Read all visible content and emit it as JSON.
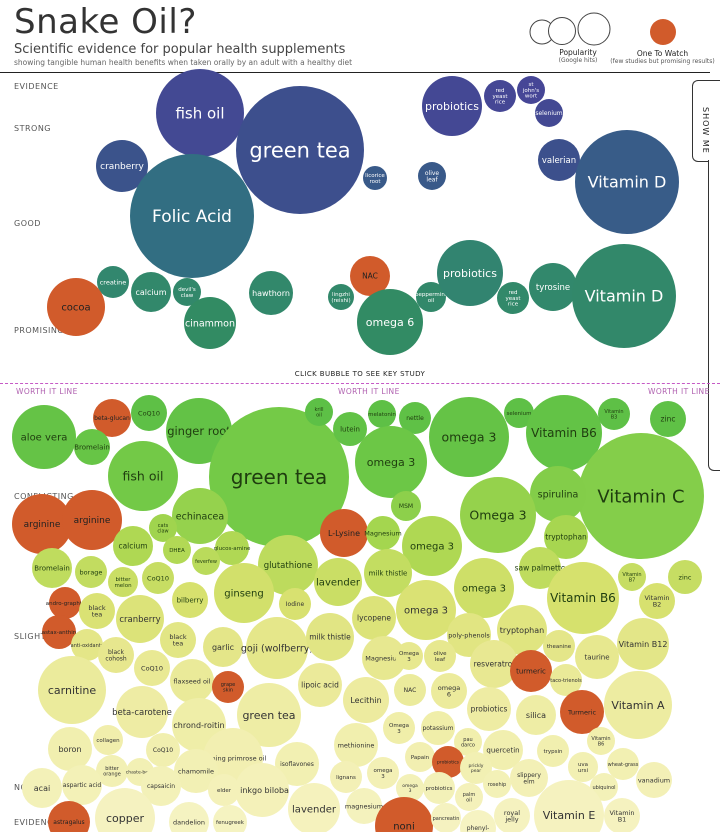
{
  "header": {
    "title": "Snake Oil?",
    "subtitle": "Scientific evidence for popular health supplements",
    "subtitle2": "showing tangible human health benefits when taken orally by an adult with a healthy diet"
  },
  "legend": {
    "popularity_label": "Popularity",
    "popularity_sub": "(Google hits)",
    "one_to_watch_label": "One To Watch",
    "one_to_watch_sub": "(few studies but promising results)",
    "one_to_watch_color": "#d15b2b"
  },
  "show_me_label": "SHOW ME",
  "evidence_levels": {
    "evidence": "EVIDENCE",
    "strong": "STRONG",
    "good": "GOOD",
    "promising": "PROMISING",
    "conflicting": "CONFLICTING",
    "slight": "SLIGHT",
    "none": "NONE",
    "evidence_bottom": "EVIDENCE"
  },
  "click_note": "CLICK BUBBLE TO SEE KEY STUDY",
  "worth_it_line": "WORTH IT LINE",
  "chart_data": {
    "type": "bubble",
    "title": "Snake Oil?",
    "y_axis_categories": [
      "STRONG",
      "GOOD",
      "PROMISING",
      "CONFLICTING",
      "SLIGHT",
      "NONE"
    ],
    "size_meaning": "Popularity (Google hits)",
    "highlight_meaning": "One To Watch (few studies but promising results)",
    "bubbles": [
      {
        "name": "fish oil",
        "level": "strong",
        "popularity": 2.3,
        "watch": false
      },
      {
        "name": "green tea",
        "level": "strong",
        "popularity": 4.0,
        "watch": false
      },
      {
        "name": "cranberry",
        "level": "strong",
        "popularity": 1.1,
        "watch": false
      },
      {
        "name": "Folic Acid",
        "level": "good",
        "popularity": 3.7,
        "watch": false
      },
      {
        "name": "licorice root",
        "level": "good",
        "popularity": 0.6,
        "watch": false
      },
      {
        "name": "olive leaf",
        "level": "good",
        "popularity": 0.6,
        "watch": false
      },
      {
        "name": "probiotics",
        "level": "strong",
        "popularity": 1.8,
        "watch": false
      },
      {
        "name": "red yeast rice",
        "level": "strong",
        "popularity": 0.7,
        "watch": false
      },
      {
        "name": "st john's wort",
        "level": "strong",
        "popularity": 0.6,
        "watch": false
      },
      {
        "name": "selenium",
        "level": "strong",
        "popularity": 0.6,
        "watch": false
      },
      {
        "name": "valerian",
        "level": "good",
        "popularity": 0.9,
        "watch": false
      },
      {
        "name": "Vitamin D",
        "level": "good",
        "popularity": 3.2,
        "watch": false
      },
      {
        "name": "creatine",
        "level": "promising",
        "popularity": 0.7,
        "watch": false
      },
      {
        "name": "calcium",
        "level": "promising",
        "popularity": 0.9,
        "watch": false
      },
      {
        "name": "devil's claw",
        "level": "promising",
        "popularity": 0.6,
        "watch": false
      },
      {
        "name": "cocoa",
        "level": "promising",
        "popularity": 1.1,
        "watch": true
      },
      {
        "name": "cinammon",
        "level": "promising",
        "popularity": 1.0,
        "watch": false
      },
      {
        "name": "hawthorn",
        "level": "promising",
        "popularity": 0.9,
        "watch": false
      },
      {
        "name": "NAC",
        "level": "promising",
        "popularity": 0.8,
        "watch": true
      },
      {
        "name": "lingzhi (reishi)",
        "level": "promising",
        "popularity": 0.6,
        "watch": false
      },
      {
        "name": "omega 6",
        "level": "promising",
        "popularity": 1.3,
        "watch": false
      },
      {
        "name": "peppermint oil",
        "level": "promising",
        "popularity": 0.6,
        "watch": false
      },
      {
        "name": "probiotics",
        "level": "promising",
        "popularity": 1.3,
        "watch": false
      },
      {
        "name": "red yeast rice",
        "level": "promising",
        "popularity": 0.7,
        "watch": false
      },
      {
        "name": "tyrosine",
        "level": "promising",
        "popularity": 0.9,
        "watch": false
      },
      {
        "name": "Vitamin D",
        "level": "promising",
        "popularity": 2.1,
        "watch": false
      },
      {
        "name": "aloe vera",
        "level": "conflicting",
        "popularity": 1.2,
        "watch": false
      },
      {
        "name": "beta-glucan",
        "level": "conflicting",
        "popularity": 0.7,
        "watch": true
      },
      {
        "name": "Vitamin C",
        "level": "conflicting",
        "popularity": 3.0,
        "watch": false
      },
      {
        "name": "green tea",
        "level": "conflicting",
        "popularity": 3.6,
        "watch": false
      },
      {
        "name": "carnitine",
        "level": "slight",
        "popularity": 1.5,
        "watch": false
      },
      {
        "name": "noni",
        "level": "none",
        "popularity": 1.2,
        "watch": true
      }
    ]
  }
}
